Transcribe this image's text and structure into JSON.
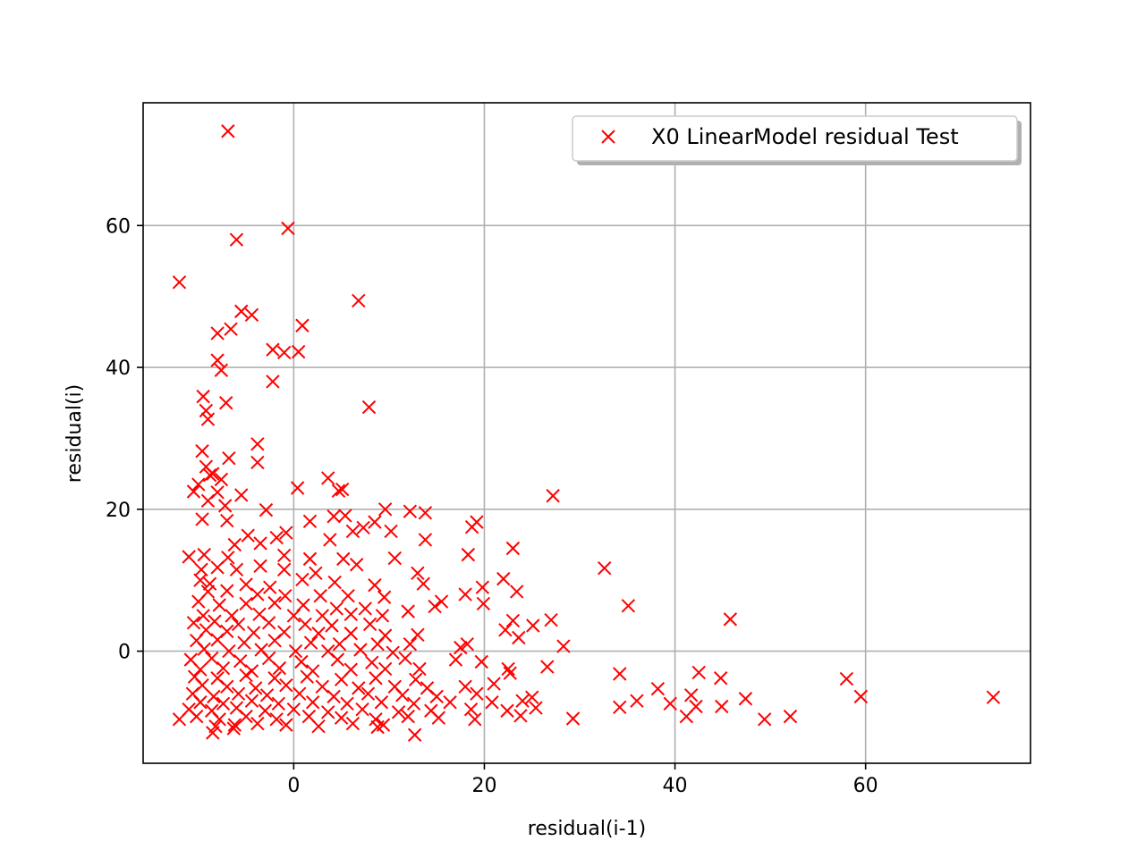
{
  "chart_data": {
    "type": "scatter",
    "xlabel": "residual(i-1)",
    "ylabel": "residual(i)",
    "xlim": [
      -15.8,
      77.3
    ],
    "ylim": [
      -15.8,
      77.3
    ],
    "xticks": [
      0,
      20,
      40,
      60
    ],
    "yticks": [
      0,
      20,
      40,
      60
    ],
    "grid": true,
    "legend": {
      "position": "upper right",
      "shadow": true
    },
    "series": [
      {
        "name": "X0 LinearModel residual Test",
        "color": "#ff0000",
        "marker": "x",
        "points": [
          [
            -6.9,
            73.3
          ],
          [
            -12.0,
            52.0
          ],
          [
            -6.0,
            58.0
          ],
          [
            -0.6,
            59.6
          ],
          [
            6.8,
            49.4
          ],
          [
            -5.5,
            47.9
          ],
          [
            -4.4,
            47.4
          ],
          [
            -6.6,
            45.4
          ],
          [
            -8.0,
            44.8
          ],
          [
            0.9,
            45.9
          ],
          [
            -2.2,
            42.5
          ],
          [
            -1.0,
            42.1
          ],
          [
            0.5,
            42.2
          ],
          [
            -8.0,
            41.0
          ],
          [
            -7.6,
            39.6
          ],
          [
            -2.2,
            38.0
          ],
          [
            -9.5,
            35.9
          ],
          [
            -7.1,
            35.0
          ],
          [
            7.9,
            34.4
          ],
          [
            -9.2,
            33.9
          ],
          [
            -9.0,
            32.7
          ],
          [
            -3.8,
            29.2
          ],
          [
            -9.6,
            28.2
          ],
          [
            -3.8,
            26.6
          ],
          [
            -6.8,
            27.2
          ],
          [
            -9.2,
            26.0
          ],
          [
            -8.5,
            25.0
          ],
          [
            -7.6,
            24.2
          ],
          [
            -10.0,
            23.5
          ],
          [
            -8.8,
            24.8
          ],
          [
            3.6,
            24.4
          ],
          [
            -10.5,
            22.5
          ],
          [
            -8.0,
            22.4
          ],
          [
            -5.5,
            22.0
          ],
          [
            0.4,
            23.0
          ],
          [
            4.7,
            22.6
          ],
          [
            5.1,
            22.8
          ],
          [
            27.2,
            21.9
          ],
          [
            -9.0,
            21.2
          ],
          [
            -7.2,
            20.5
          ],
          [
            9.6,
            20.0
          ],
          [
            12.2,
            19.7
          ],
          [
            13.8,
            19.5
          ],
          [
            -2.9,
            19.9
          ],
          [
            4.2,
            19.0
          ],
          [
            5.4,
            19.1
          ],
          [
            8.5,
            18.2
          ],
          [
            -9.6,
            18.6
          ],
          [
            -7.0,
            18.4
          ],
          [
            1.7,
            18.3
          ],
          [
            19.2,
            18.2
          ],
          [
            18.7,
            17.5
          ],
          [
            -1.8,
            16.0
          ],
          [
            -4.8,
            16.3
          ],
          [
            -0.8,
            16.7
          ],
          [
            6.2,
            16.9
          ],
          [
            7.3,
            17.4
          ],
          [
            10.2,
            16.9
          ],
          [
            -3.5,
            15.2
          ],
          [
            -6.2,
            15.0
          ],
          [
            3.8,
            15.7
          ],
          [
            13.8,
            15.7
          ],
          [
            -11.0,
            13.3
          ],
          [
            -9.4,
            13.6
          ],
          [
            -6.9,
            13.2
          ],
          [
            -1.0,
            13.5
          ],
          [
            1.7,
            13.0
          ],
          [
            5.2,
            13.0
          ],
          [
            10.6,
            13.1
          ],
          [
            18.3,
            13.6
          ],
          [
            23.0,
            14.5
          ],
          [
            -9.7,
            11.5
          ],
          [
            -8.0,
            11.8
          ],
          [
            -6.0,
            11.5
          ],
          [
            -3.5,
            12.0
          ],
          [
            -1.0,
            11.5
          ],
          [
            2.3,
            11.0
          ],
          [
            6.6,
            12.2
          ],
          [
            13.0,
            11.0
          ],
          [
            32.6,
            11.7
          ],
          [
            -9.8,
            10.0
          ],
          [
            -8.8,
            9.5
          ],
          [
            -5.0,
            9.4
          ],
          [
            -2.5,
            9.0
          ],
          [
            0.9,
            10.1
          ],
          [
            4.3,
            9.7
          ],
          [
            8.5,
            9.3
          ],
          [
            13.6,
            9.5
          ],
          [
            22.0,
            10.2
          ],
          [
            19.8,
            9.0
          ],
          [
            -9.0,
            8.4
          ],
          [
            -7.0,
            8.5
          ],
          [
            -3.8,
            8.0
          ],
          [
            -0.9,
            7.8
          ],
          [
            2.8,
            7.8
          ],
          [
            5.7,
            7.8
          ],
          [
            9.5,
            7.6
          ],
          [
            15.5,
            7.0
          ],
          [
            18.0,
            8.0
          ],
          [
            23.4,
            8.4
          ],
          [
            35.1,
            6.4
          ],
          [
            -10.0,
            7.0
          ],
          [
            -7.8,
            6.5
          ],
          [
            -5.0,
            6.7
          ],
          [
            -2.0,
            6.8
          ],
          [
            1.0,
            6.5
          ],
          [
            4.5,
            6.0
          ],
          [
            7.5,
            6.0
          ],
          [
            12.0,
            5.6
          ],
          [
            14.8,
            6.3
          ],
          [
            19.9,
            6.7
          ],
          [
            -9.5,
            5.0
          ],
          [
            -6.5,
            5.0
          ],
          [
            -3.6,
            5.2
          ],
          [
            0.0,
            5.0
          ],
          [
            3.0,
            5.0
          ],
          [
            6.0,
            5.2
          ],
          [
            9.3,
            5.0
          ],
          [
            -10.5,
            4.0
          ],
          [
            -8.3,
            4.2
          ],
          [
            -5.8,
            3.8
          ],
          [
            -2.6,
            4.0
          ],
          [
            1.2,
            3.8
          ],
          [
            4.0,
            3.6
          ],
          [
            8.0,
            3.8
          ],
          [
            23.0,
            4.3
          ],
          [
            27.0,
            4.4
          ],
          [
            45.8,
            4.5
          ],
          [
            -9.2,
            3.0
          ],
          [
            -7.0,
            2.8
          ],
          [
            -4.2,
            2.6
          ],
          [
            -1.0,
            2.7
          ],
          [
            2.6,
            2.5
          ],
          [
            6.0,
            2.5
          ],
          [
            9.6,
            2.2
          ],
          [
            13.0,
            2.3
          ],
          [
            22.2,
            3.0
          ],
          [
            25.1,
            3.6
          ],
          [
            -10.2,
            1.5
          ],
          [
            -8.0,
            1.6
          ],
          [
            -5.2,
            1.2
          ],
          [
            -2.0,
            1.5
          ],
          [
            1.8,
            1.2
          ],
          [
            4.8,
            1.0
          ],
          [
            8.8,
            1.0
          ],
          [
            12.2,
            1.0
          ],
          [
            18.2,
            1.0
          ],
          [
            23.6,
            1.9
          ],
          [
            -9.4,
            0.3
          ],
          [
            -6.8,
            0.0
          ],
          [
            -3.4,
            0.2
          ],
          [
            0.2,
            0.0
          ],
          [
            3.6,
            0.0
          ],
          [
            7.0,
            0.2
          ],
          [
            10.4,
            -0.2
          ],
          [
            17.5,
            0.5
          ],
          [
            28.3,
            0.7
          ],
          [
            -10.8,
            -1.2
          ],
          [
            -8.6,
            -1.0
          ],
          [
            -5.6,
            -1.4
          ],
          [
            -2.6,
            -1.0
          ],
          [
            0.8,
            -1.5
          ],
          [
            4.6,
            -1.2
          ],
          [
            8.2,
            -1.6
          ],
          [
            11.7,
            -1.0
          ],
          [
            17.0,
            -1.2
          ],
          [
            19.7,
            -1.5
          ],
          [
            -9.8,
            -2.6
          ],
          [
            -7.4,
            -2.4
          ],
          [
            -4.4,
            -2.8
          ],
          [
            -1.5,
            -2.4
          ],
          [
            2.0,
            -2.8
          ],
          [
            6.0,
            -2.6
          ],
          [
            9.6,
            -2.5
          ],
          [
            13.2,
            -2.5
          ],
          [
            22.5,
            -2.5
          ],
          [
            26.6,
            -2.2
          ],
          [
            -10.4,
            -3.6
          ],
          [
            -8.0,
            -3.8
          ],
          [
            -5.0,
            -3.4
          ],
          [
            -2.0,
            -3.8
          ],
          [
            1.4,
            -3.6
          ],
          [
            5.0,
            -4.0
          ],
          [
            8.6,
            -3.8
          ],
          [
            12.8,
            -4.0
          ],
          [
            22.7,
            -3.1
          ],
          [
            34.2,
            -3.2
          ],
          [
            42.5,
            -3.0
          ],
          [
            44.8,
            -3.8
          ],
          [
            58.0,
            -3.9
          ],
          [
            -9.6,
            -4.8
          ],
          [
            -7.0,
            -5.0
          ],
          [
            -4.0,
            -5.2
          ],
          [
            -0.8,
            -4.8
          ],
          [
            3.0,
            -5.0
          ],
          [
            6.8,
            -5.2
          ],
          [
            10.6,
            -5.0
          ],
          [
            14.0,
            -5.2
          ],
          [
            18.0,
            -5.0
          ],
          [
            21.0,
            -4.6
          ],
          [
            -10.6,
            -6.0
          ],
          [
            -8.4,
            -6.4
          ],
          [
            -5.8,
            -6.0
          ],
          [
            -2.8,
            -6.2
          ],
          [
            0.6,
            -6.0
          ],
          [
            4.2,
            -6.4
          ],
          [
            7.8,
            -6.0
          ],
          [
            11.4,
            -6.2
          ],
          [
            15.0,
            -6.4
          ],
          [
            19.2,
            -6.0
          ],
          [
            25.0,
            -6.5
          ],
          [
            38.2,
            -5.3
          ],
          [
            41.7,
            -6.2
          ],
          [
            47.4,
            -6.7
          ],
          [
            59.5,
            -6.4
          ],
          [
            73.4,
            -6.5
          ],
          [
            -9.8,
            -7.2
          ],
          [
            -7.4,
            -7.4
          ],
          [
            -4.4,
            -7.0
          ],
          [
            -1.6,
            -7.4
          ],
          [
            2.0,
            -7.2
          ],
          [
            5.6,
            -7.4
          ],
          [
            9.2,
            -7.2
          ],
          [
            12.6,
            -7.4
          ],
          [
            16.4,
            -7.2
          ],
          [
            20.8,
            -7.2
          ],
          [
            24.0,
            -7.0
          ],
          [
            36.0,
            -7.0
          ],
          [
            42.2,
            -7.8
          ],
          [
            -11.0,
            -8.2
          ],
          [
            -8.6,
            -8.4
          ],
          [
            -6.0,
            -8.0
          ],
          [
            -3.0,
            -8.4
          ],
          [
            0.0,
            -8.2
          ],
          [
            3.6,
            -8.6
          ],
          [
            7.2,
            -8.2
          ],
          [
            11.0,
            -8.6
          ],
          [
            14.4,
            -8.4
          ],
          [
            18.6,
            -8.2
          ],
          [
            22.4,
            -8.4
          ],
          [
            25.4,
            -8.0
          ],
          [
            34.2,
            -7.9
          ],
          [
            39.5,
            -7.4
          ],
          [
            44.9,
            -7.8
          ],
          [
            -10.2,
            -9.2
          ],
          [
            -7.8,
            -9.6
          ],
          [
            -5.0,
            -9.2
          ],
          [
            -1.8,
            -9.6
          ],
          [
            1.6,
            -9.2
          ],
          [
            5.0,
            -9.4
          ],
          [
            8.6,
            -9.6
          ],
          [
            12.0,
            -9.2
          ],
          [
            15.2,
            -9.4
          ],
          [
            19.0,
            -9.6
          ],
          [
            23.8,
            -9.1
          ],
          [
            29.3,
            -9.5
          ],
          [
            41.2,
            -9.2
          ],
          [
            49.4,
            -9.6
          ],
          [
            52.1,
            -9.2
          ],
          [
            -12.0,
            -9.6
          ],
          [
            -8.2,
            -10.6
          ],
          [
            -6.2,
            -10.4
          ],
          [
            -3.8,
            -10.2
          ],
          [
            -0.8,
            -10.4
          ],
          [
            2.6,
            -10.6
          ],
          [
            6.2,
            -10.2
          ],
          [
            9.4,
            -10.4
          ],
          [
            -8.5,
            -11.5
          ],
          [
            -6.3,
            -10.9
          ],
          [
            8.8,
            -10.7
          ],
          [
            12.7,
            -11.8
          ]
        ]
      }
    ]
  }
}
